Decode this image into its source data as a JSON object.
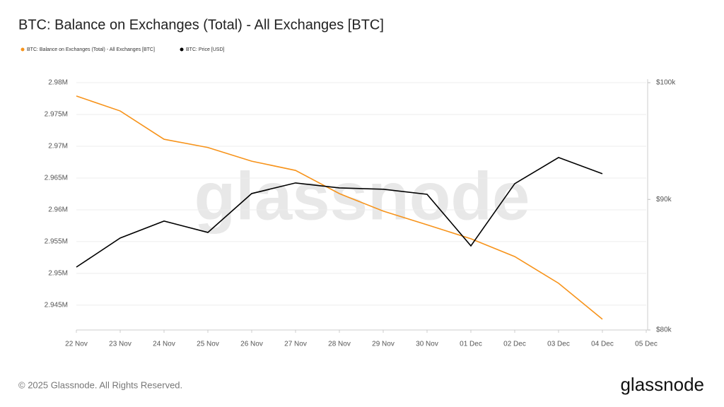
{
  "chart_data": {
    "type": "line",
    "title": "BTC: Balance on Exchanges (Total) - All Exchanges [BTC]",
    "categories": [
      "22 Nov",
      "23 Nov",
      "24 Nov",
      "25 Nov",
      "26 Nov",
      "27 Nov",
      "28 Nov",
      "29 Nov",
      "30 Nov",
      "01 Dec",
      "02 Dec",
      "03 Dec",
      "04 Dec",
      "05 Dec"
    ],
    "series": [
      {
        "name": "BTC: Balance on Exchanges (Total) - All Exchanges [BTC]",
        "color": "#f7931a",
        "values": [
          2977900,
          2975550,
          2971100,
          2969800,
          2967650,
          2966200,
          2962550,
          2959800,
          2957650,
          2955450,
          2952650,
          2948450,
          2942800,
          null
        ]
      },
      {
        "name": "BTC: Price [USD]",
        "color": "#000000",
        "axis": "y2",
        "values": [
          84670,
          86920,
          88260,
          87360,
          90480,
          91350,
          90940,
          90830,
          90420,
          86310,
          91290,
          93470,
          92110,
          null
        ]
      }
    ],
    "ylim": [
      2941100,
      2980000
    ],
    "yticks": [
      {
        "value": 2945000,
        "label": "2.945M"
      },
      {
        "value": 2950000,
        "label": "2.95M"
      },
      {
        "value": 2955000,
        "label": "2.955M"
      },
      {
        "value": 2960000,
        "label": "2.96M"
      },
      {
        "value": 2965000,
        "label": "2.965M"
      },
      {
        "value": 2970000,
        "label": "2.97M"
      },
      {
        "value": 2975000,
        "label": "2.975M"
      },
      {
        "value": 2980000,
        "label": "2.98M"
      }
    ],
    "y2lim": [
      80000,
      100000
    ],
    "y2ticks": [
      {
        "value": 80000,
        "label": "$80k"
      },
      {
        "value": 90000,
        "label": "$90k"
      },
      {
        "value": 100000,
        "label": "$100k"
      }
    ],
    "y2log": true,
    "grid": true,
    "watermark": "glassnode",
    "footer": "© 2025 Glassnode. All Rights Reserved.",
    "logo": "glassnode"
  }
}
